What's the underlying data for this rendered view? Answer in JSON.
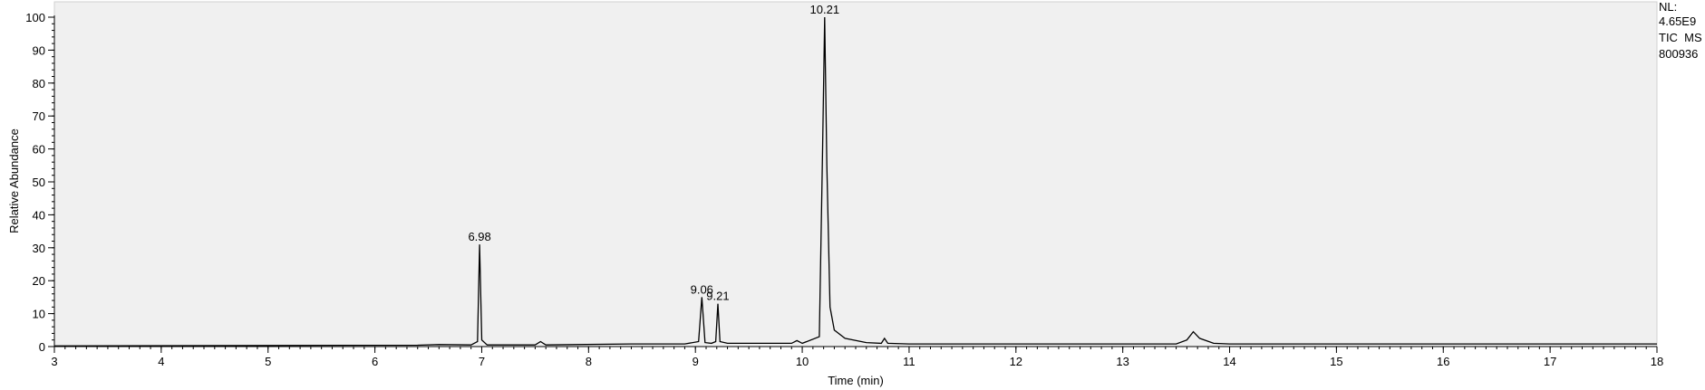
{
  "chart_data": {
    "type": "line",
    "xlabel": "Time (min)",
    "ylabel": "Relative Abundance",
    "xlim": [
      3,
      18
    ],
    "ylim": [
      0,
      100
    ],
    "x_ticks": [
      "3",
      "4",
      "5",
      "6",
      "7",
      "8",
      "9",
      "10",
      "11",
      "12",
      "13",
      "14",
      "15",
      "16",
      "17",
      "18"
    ],
    "y_ticks": [
      "0",
      "10",
      "20",
      "30",
      "40",
      "50",
      "60",
      "70",
      "80",
      "90",
      "100"
    ],
    "grid": false,
    "background": "#f0f0f0",
    "line_color": "#000000",
    "peak_labels": [
      {
        "time": 6.98,
        "height": 31,
        "text": "6.98"
      },
      {
        "time": 9.06,
        "height": 15,
        "text": "9.06"
      },
      {
        "time": 9.21,
        "height": 13,
        "text": "9.21"
      },
      {
        "time": 10.21,
        "height": 100,
        "text": "10.21"
      }
    ],
    "series": [
      {
        "x": [
          3.0,
          6.4,
          6.6,
          6.9,
          6.96,
          6.98,
          7.0,
          7.05,
          7.5,
          7.55,
          7.6,
          8.4,
          8.9,
          9.03,
          9.06,
          9.09,
          9.15,
          9.19,
          9.21,
          9.23,
          9.3,
          9.9,
          9.95,
          10.0,
          10.16,
          10.19,
          10.21,
          10.23,
          10.26,
          10.3,
          10.4,
          10.6,
          10.74,
          10.77,
          10.8,
          11.0,
          13.5,
          13.6,
          13.66,
          13.72,
          13.85,
          14.0,
          18.0
        ],
        "y": [
          0.2,
          0.4,
          0.6,
          0.5,
          1.5,
          31,
          2,
          0.5,
          0.5,
          1.5,
          0.5,
          0.8,
          0.8,
          1.5,
          15,
          1.2,
          1.0,
          1.5,
          13,
          1.5,
          1.0,
          1.0,
          1.8,
          1.0,
          3,
          60,
          100,
          55,
          12,
          5,
          2.5,
          1.2,
          1.0,
          2.5,
          1.0,
          0.8,
          0.8,
          2,
          4.5,
          2.5,
          1.0,
          0.8,
          0.8
        ]
      }
    ]
  },
  "info": {
    "nl_label": "NL:",
    "nl_value": "4.65E9",
    "scan": "TIC  MS",
    "file": "800936"
  }
}
